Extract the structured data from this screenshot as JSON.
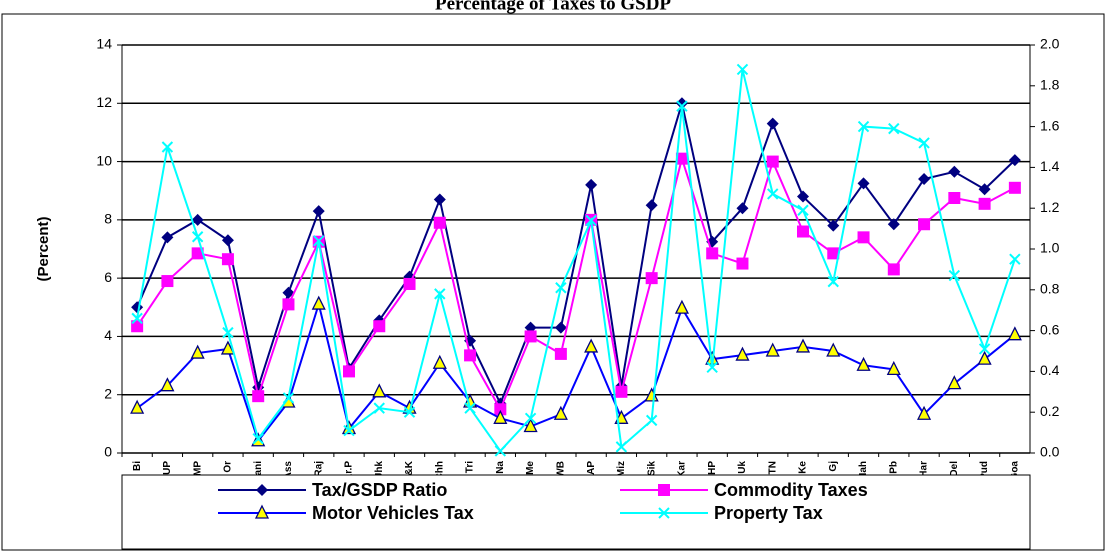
{
  "chart_data": {
    "type": "line",
    "title": "Percentage of Taxes to GSDP",
    "ylabel": "(Percent)",
    "categories": [
      "Bi",
      "UP",
      "MP",
      "Or",
      "Mani",
      "Ass",
      "Raj",
      "Ar.P",
      "Jhk",
      "J&K",
      "Chh",
      "Tri",
      "Na",
      "Me",
      "WB",
      "AP",
      "Miz",
      "Sik",
      "Kar",
      "HP",
      "Uk",
      "TN",
      "Ke",
      "Gj",
      "Mah",
      "Pb",
      "Har",
      "Del",
      "Pud",
      "Goa"
    ],
    "ylim": [
      0,
      14
    ],
    "yticks": [
      0,
      2,
      4,
      6,
      8,
      10,
      12,
      14
    ],
    "y2lim": [
      0,
      2
    ],
    "y2ticks": [
      {
        "value": 0,
        "label": "0.0"
      },
      0.2,
      0.4,
      0.6,
      0.8,
      {
        "value": 1,
        "label": "1.0"
      },
      1.2,
      1.4,
      1.6,
      1.8,
      {
        "value": 2,
        "label": "2.0"
      }
    ],
    "grid": true,
    "legend": "bottom",
    "series": [
      {
        "name": "Tax/GSDP Ratio",
        "color": "#000080",
        "marker": "diamond",
        "values": [
          5.0,
          7.4,
          8.0,
          7.3,
          2.25,
          5.5,
          8.3,
          2.9,
          4.55,
          6.05,
          8.7,
          3.85,
          1.7,
          4.3,
          4.3,
          9.2,
          2.3,
          8.5,
          12.0,
          7.25,
          8.4,
          11.3,
          8.8,
          7.8,
          9.25,
          7.85,
          9.4,
          9.65,
          9.05,
          10.05
        ]
      },
      {
        "name": "Commodity Taxes",
        "color": "#ff00ff",
        "marker": "square",
        "values": [
          4.35,
          5.9,
          6.85,
          6.65,
          1.95,
          5.1,
          7.25,
          2.8,
          4.35,
          5.8,
          7.9,
          3.35,
          1.5,
          4.0,
          3.4,
          8.0,
          2.1,
          6.0,
          10.1,
          6.85,
          6.5,
          10.0,
          7.6,
          6.85,
          7.4,
          6.3,
          7.85,
          8.75,
          8.55,
          9.1
        ]
      },
      {
        "name": "Motor Vehicles Tax",
        "color": "#0000ff",
        "marker": "triangle",
        "axis": "y2",
        "values": [
          0.22,
          0.33,
          0.49,
          0.51,
          0.06,
          0.25,
          0.73,
          0.12,
          0.3,
          0.22,
          0.44,
          0.25,
          0.17,
          0.13,
          0.19,
          0.52,
          0.17,
          0.28,
          0.71,
          0.46,
          0.48,
          0.5,
          0.52,
          0.5,
          0.43,
          0.41,
          0.19,
          0.34,
          0.46,
          0.58
        ]
      },
      {
        "name": "Property Tax",
        "color": "#00ffff",
        "marker": "x",
        "axis": "y2",
        "values": [
          0.66,
          1.5,
          1.06,
          0.59,
          0.07,
          0.27,
          1.04,
          0.11,
          0.22,
          0.2,
          0.78,
          0.22,
          0.01,
          0.17,
          0.81,
          1.14,
          0.03,
          0.16,
          1.7,
          0.42,
          1.88,
          1.27,
          1.19,
          0.84,
          1.6,
          1.59,
          1.52,
          0.87,
          0.51,
          0.95
        ]
      }
    ]
  }
}
